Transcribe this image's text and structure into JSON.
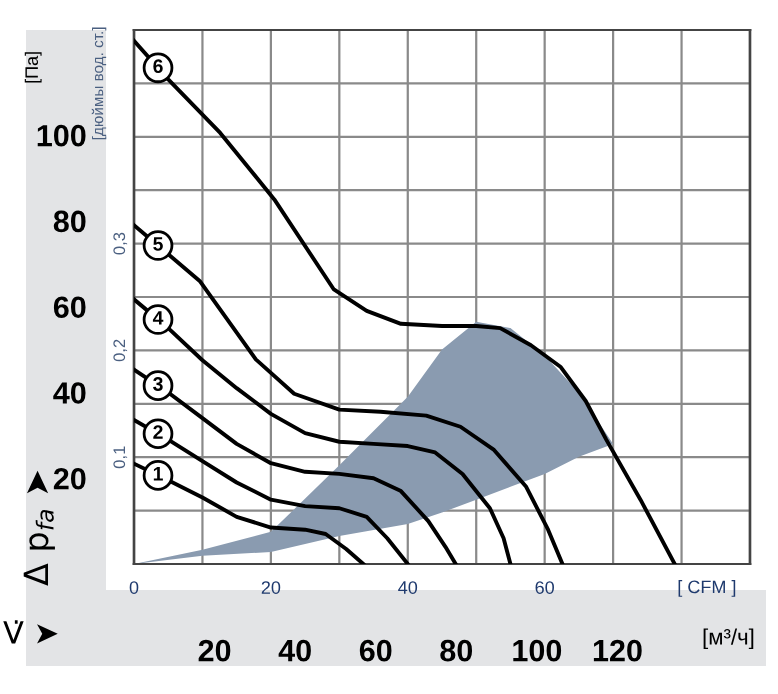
{
  "chart_data": {
    "type": "line",
    "xlabel": "[ CFM ]",
    "x2label": "[м³/ч]",
    "ylabel": "[Па]",
    "y2label": "[дюймы вод. ст.]",
    "xlim": [
      0,
      90
    ],
    "xticks": [
      0,
      20,
      40,
      60
    ],
    "x2lim": [
      0,
      152.9
    ],
    "x2ticks": [
      20,
      40,
      60,
      80,
      100,
      120
    ],
    "ylim": [
      0,
      124.5
    ],
    "yticks": [
      20,
      40,
      60,
      80,
      100
    ],
    "y2lim": [
      0,
      0.5
    ],
    "y2ticks": [
      {
        "value": 0.1,
        "label": "0,1"
      },
      {
        "value": 0.2,
        "label": "0,2"
      },
      {
        "value": 0.3,
        "label": "0,3"
      }
    ],
    "grid": true,
    "legend": "left",
    "marker": "none",
    "line_style": "solid",
    "series": [
      {
        "type": "area",
        "color": "#8a9bb0",
        "x": [
          0,
          10,
          20,
          30,
          40,
          45,
          50,
          55,
          60,
          65,
          70,
          65,
          60,
          55,
          50,
          45,
          40,
          30,
          20,
          10
        ],
        "values": [
          0,
          3.3,
          7.5,
          23,
          39,
          50,
          56.5,
          55,
          48.6,
          40,
          28,
          25,
          21,
          18,
          15,
          12,
          9.3,
          6.5,
          2.8,
          1.9
        ]
      },
      {
        "name": "1",
        "color": "#000000",
        "x": [
          0,
          5,
          10,
          15,
          20,
          25,
          28,
          31,
          33.5
        ],
        "values": [
          23.4,
          19.5,
          15.5,
          11,
          8.5,
          8,
          7,
          3.5,
          0
        ]
      },
      {
        "name": "2",
        "color": "#000000",
        "x": [
          0,
          5,
          10,
          15,
          20,
          25,
          30,
          34,
          37,
          40
        ],
        "values": [
          33.6,
          29,
          24,
          19,
          15,
          13.5,
          13,
          11,
          6,
          0
        ]
      },
      {
        "name": "3",
        "color": "#000000",
        "x": [
          0,
          5,
          10,
          15,
          20,
          25,
          30,
          35,
          39,
          43,
          45.5,
          47
        ],
        "values": [
          45.3,
          40,
          34,
          28,
          23.5,
          21.5,
          21,
          20,
          17,
          10,
          4,
          0
        ]
      },
      {
        "name": "4",
        "color": "#000000",
        "x": [
          0,
          5,
          10,
          15,
          20,
          25,
          30,
          35,
          40,
          44,
          48,
          52,
          54,
          55
        ],
        "values": [
          61.7,
          55,
          47.5,
          41,
          35,
          30.5,
          28.5,
          28,
          27.5,
          26,
          21,
          13,
          6,
          0
        ]
      },
      {
        "name": "5",
        "color": "#000000",
        "x": [
          0,
          9.6,
          17.8,
          23.4,
          30,
          36,
          42.7,
          47.7,
          52.6,
          57.3,
          60.5,
          62.6
        ],
        "values": [
          79,
          66,
          47.7,
          39.7,
          36,
          35.5,
          34.6,
          32,
          26.6,
          18,
          8,
          0
        ]
      },
      {
        "name": "6",
        "color": "#000000",
        "x": [
          0,
          5,
          12.6,
          20.5,
          29.2,
          34,
          39,
          45,
          50,
          53.5,
          58,
          62.3,
          66,
          69,
          74,
          79
        ],
        "values": [
          122,
          113,
          100.5,
          85,
          64,
          59,
          56,
          55.5,
          55.5,
          55,
          51,
          46,
          38,
          29,
          15,
          0
        ]
      }
    ],
    "annotations": [
      "Δ p$_{fa}$ ➤",
      "V̇ ➤"
    ]
  }
}
